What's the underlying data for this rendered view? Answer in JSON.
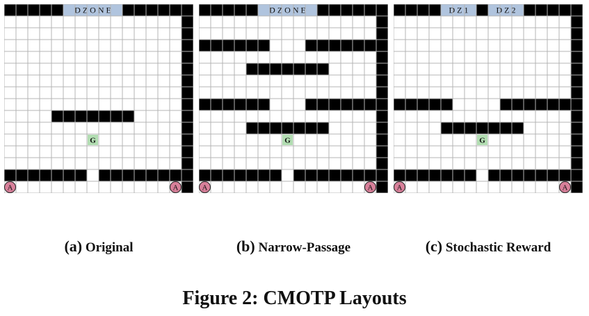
{
  "panels": [
    {
      "tag": "(a)",
      "label": "Original",
      "zones": [
        {
          "text": "D Z O N E",
          "col_start": 5,
          "col_end": 10
        }
      ],
      "walls": [
        "WWWWW.....WWWWWW",
        "...............W",
        "...............W",
        "...............W",
        "...............W",
        "...............W",
        "...............W",
        "...............W",
        "...............W",
        "....WWWWWWW....W",
        "...............W",
        "...............W",
        "...............W",
        "...............W",
        "WWWWWWW.WWWWWWWW",
        "...............W"
      ],
      "goal": {
        "text": "G",
        "row": 11,
        "col": 7
      },
      "agents": [
        {
          "text": "A",
          "row": 15,
          "col": 0
        },
        {
          "text": "A",
          "row": 15,
          "col": 14
        }
      ]
    },
    {
      "tag": "(b)",
      "label": "Narrow-Passage",
      "zones": [
        {
          "text": "D Z O N E",
          "col_start": 5,
          "col_end": 10
        }
      ],
      "walls": [
        "WWWWW.....WWWWWW",
        "...............W",
        "...............W",
        "WWWWWW...WWWWWWW",
        "...............W",
        "....WWWWWWW....W",
        "...............W",
        "...............W",
        "WWWWWW...WWWWWWW",
        "...............W",
        "....WWWWWWW....W",
        "...............W",
        "...............W",
        "...............W",
        "WWWWWWW.WWWWWWWW",
        "...............W"
      ],
      "goal": {
        "text": "G",
        "row": 11,
        "col": 7
      },
      "agents": [
        {
          "text": "A",
          "row": 15,
          "col": 0
        },
        {
          "text": "A",
          "row": 15,
          "col": 14
        }
      ]
    },
    {
      "tag": "(c)",
      "label": "Stochastic Reward",
      "zones": [
        {
          "text": "D Z 1",
          "col_start": 4,
          "col_end": 7
        },
        {
          "text": "D Z 2",
          "col_start": 8,
          "col_end": 11
        }
      ],
      "walls": [
        "WWWW...W...WWWWW",
        "...............W",
        "...............W",
        "...............W",
        "...............W",
        "...............W",
        "...............W",
        "...............W",
        "WWWWW....WWWWWWW",
        "...............W",
        "....WWWWWWW....W",
        "...............W",
        "...............W",
        "...............W",
        "WWWWWWW.WWWWWWWW",
        "...............W"
      ],
      "goal": {
        "text": "G",
        "row": 11,
        "col": 7
      },
      "agents": [
        {
          "text": "A",
          "row": 15,
          "col": 0
        },
        {
          "text": "A",
          "row": 15,
          "col": 14
        }
      ]
    }
  ],
  "figure_caption": "Figure 2: CMOTP Layouts",
  "colors": {
    "wall": "#000000",
    "grid_line": "#b4b4b4",
    "zone": "#b0c4de",
    "goal": "#b2ddb2",
    "agent": "#d8809a",
    "cell": "#ffffff"
  }
}
